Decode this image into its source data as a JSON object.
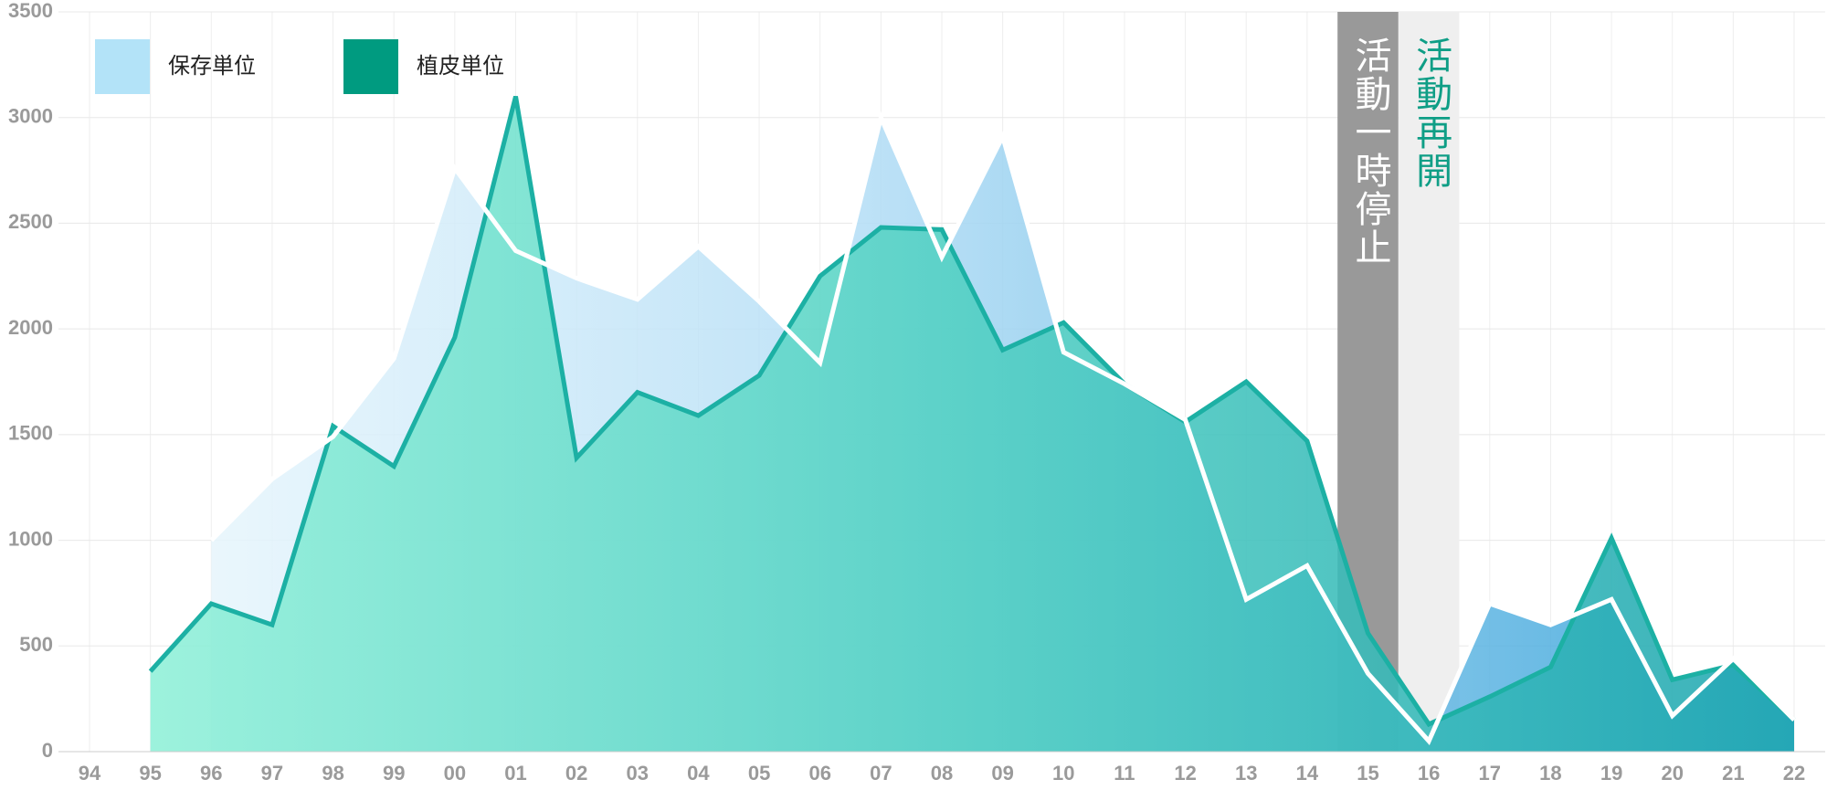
{
  "chart_data": {
    "type": "area",
    "categories": [
      "94",
      "95",
      "96",
      "97",
      "98",
      "99",
      "00",
      "01",
      "02",
      "03",
      "04",
      "05",
      "06",
      "07",
      "08",
      "09",
      "10",
      "11",
      "12",
      "13",
      "14",
      "15",
      "16",
      "17",
      "18",
      "19",
      "20",
      "21",
      "22"
    ],
    "series": [
      {
        "name": "保存単位",
        "color": "#b3e3f8",
        "values": [
          null,
          null,
          1000,
          1290,
          1490,
          1860,
          2760,
          2370,
          2240,
          2140,
          2390,
          2130,
          1840,
          3000,
          2340,
          2910,
          1890,
          1740,
          1570,
          720,
          880,
          370,
          50,
          700,
          600,
          720,
          170,
          440,
          150
        ]
      },
      {
        "name": "植皮単位",
        "color": "#009b80",
        "values": [
          null,
          380,
          700,
          600,
          1540,
          1350,
          1960,
          3100,
          1390,
          1700,
          1590,
          1780,
          2250,
          2480,
          2470,
          1900,
          2030,
          1740,
          1560,
          1750,
          1470,
          560,
          130,
          260,
          400,
          1010,
          340,
          410,
          150
        ]
      }
    ],
    "ylim": [
      0,
      3500
    ],
    "yticks": [
      0,
      500,
      1000,
      1500,
      2000,
      2500,
      3000,
      3500
    ],
    "grid": true,
    "annotations": [
      {
        "text": "活動一時停止",
        "x": "15"
      },
      {
        "text": "活動再開",
        "x": "16"
      }
    ]
  }
}
